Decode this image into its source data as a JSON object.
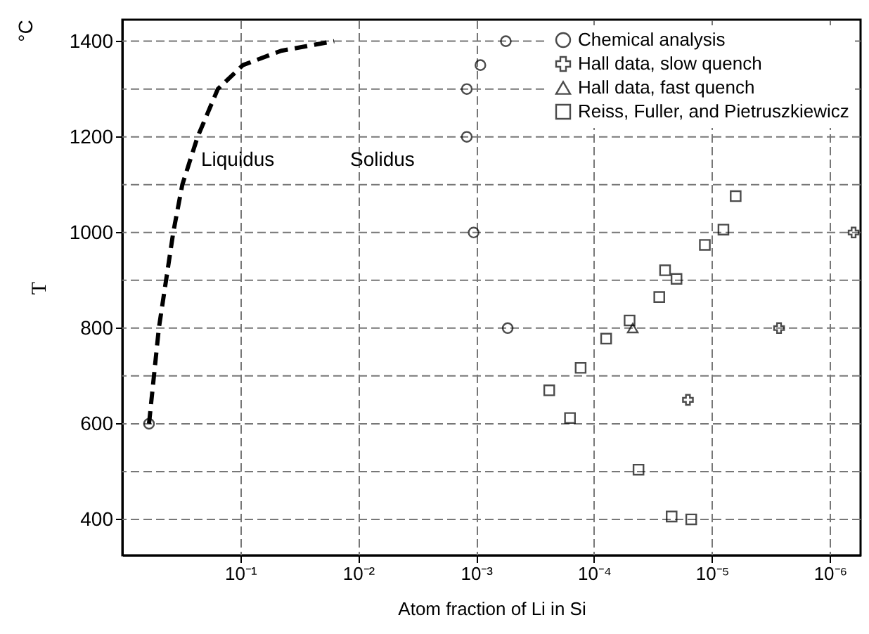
{
  "chart_data": {
    "type": "scatter",
    "xlabel": "Atom fraction of Li in Si",
    "ylabel": "T",
    "annotations": [
      "°C",
      "Liquidus",
      "Solidus"
    ],
    "xlim": [
      1,
      5.5e-07
    ],
    "log": "x",
    "xticks": [
      {
        "value": 0.1,
        "label": "10⁻¹"
      },
      {
        "value": 0.01,
        "label": "10⁻²"
      },
      {
        "value": 0.001,
        "label": "10⁻³"
      },
      {
        "value": 0.0001,
        "label": "10⁻⁴"
      },
      {
        "value": 1e-05,
        "label": "10⁻⁵"
      },
      {
        "value": 1e-06,
        "label": "10⁻⁶"
      }
    ],
    "ylim": [
      325,
      1445
    ],
    "yticks": [
      400,
      {
        "value": 500,
        "label": null
      },
      600,
      {
        "value": 700,
        "label": null
      },
      800,
      {
        "value": 900,
        "label": null
      },
      1000,
      {
        "value": 1100,
        "label": null
      },
      1200,
      {
        "value": 1300,
        "label": null
      },
      1400
    ],
    "grid": true,
    "legend": "top right",
    "series": [
      {
        "type": "line",
        "line_style": "dashed",
        "color": "#000000",
        "x": [
          0.594,
          0.49,
          0.37,
          0.31,
          0.23,
          0.155,
          0.095,
          0.045,
          0.016
        ],
        "values": [
          600,
          800,
          1000,
          1100,
          1200,
          1300,
          1350,
          1380,
          1400
        ]
      },
      {
        "name": "Chemical analysis",
        "marker": "circle",
        "color": "#000000",
        "x": [
          0.594,
          0.00056,
          0.00092,
          0.0012,
          0.0012,
          0.00105,
          0.00054
        ],
        "values": [
          600,
          1400,
          1350,
          1300,
          1200,
          1000,
          800
        ]
      },
      {
        "name": "Hall data, slow quench",
        "marker": "cross",
        "color": "#000000",
        "x": [
          6.3e-07,
          2.7e-06,
          1.6e-05
        ],
        "values": [
          1000,
          800,
          650
        ]
      },
      {
        "name": "Hall data, fast quench",
        "marker": "triangle",
        "color": "#000000",
        "x": [
          4.7e-05
        ],
        "values": [
          800
        ]
      },
      {
        "name": "Reiss, Fuller, and Pietruszkiewicz",
        "marker": "square",
        "color": "#000000",
        "x": [
          6.3e-06,
          8e-06,
          1.15e-05,
          2.5e-05,
          2e-05,
          2.8e-05,
          5e-05,
          7.9e-05,
          0.00013,
          0.00024,
          0.00016,
          4.2e-05,
          2.2e-05,
          1.5e-05
        ],
        "values": [
          1076,
          1006,
          974,
          921,
          903,
          865,
          816,
          778,
          717,
          670,
          612,
          504,
          406,
          400
        ]
      }
    ]
  }
}
